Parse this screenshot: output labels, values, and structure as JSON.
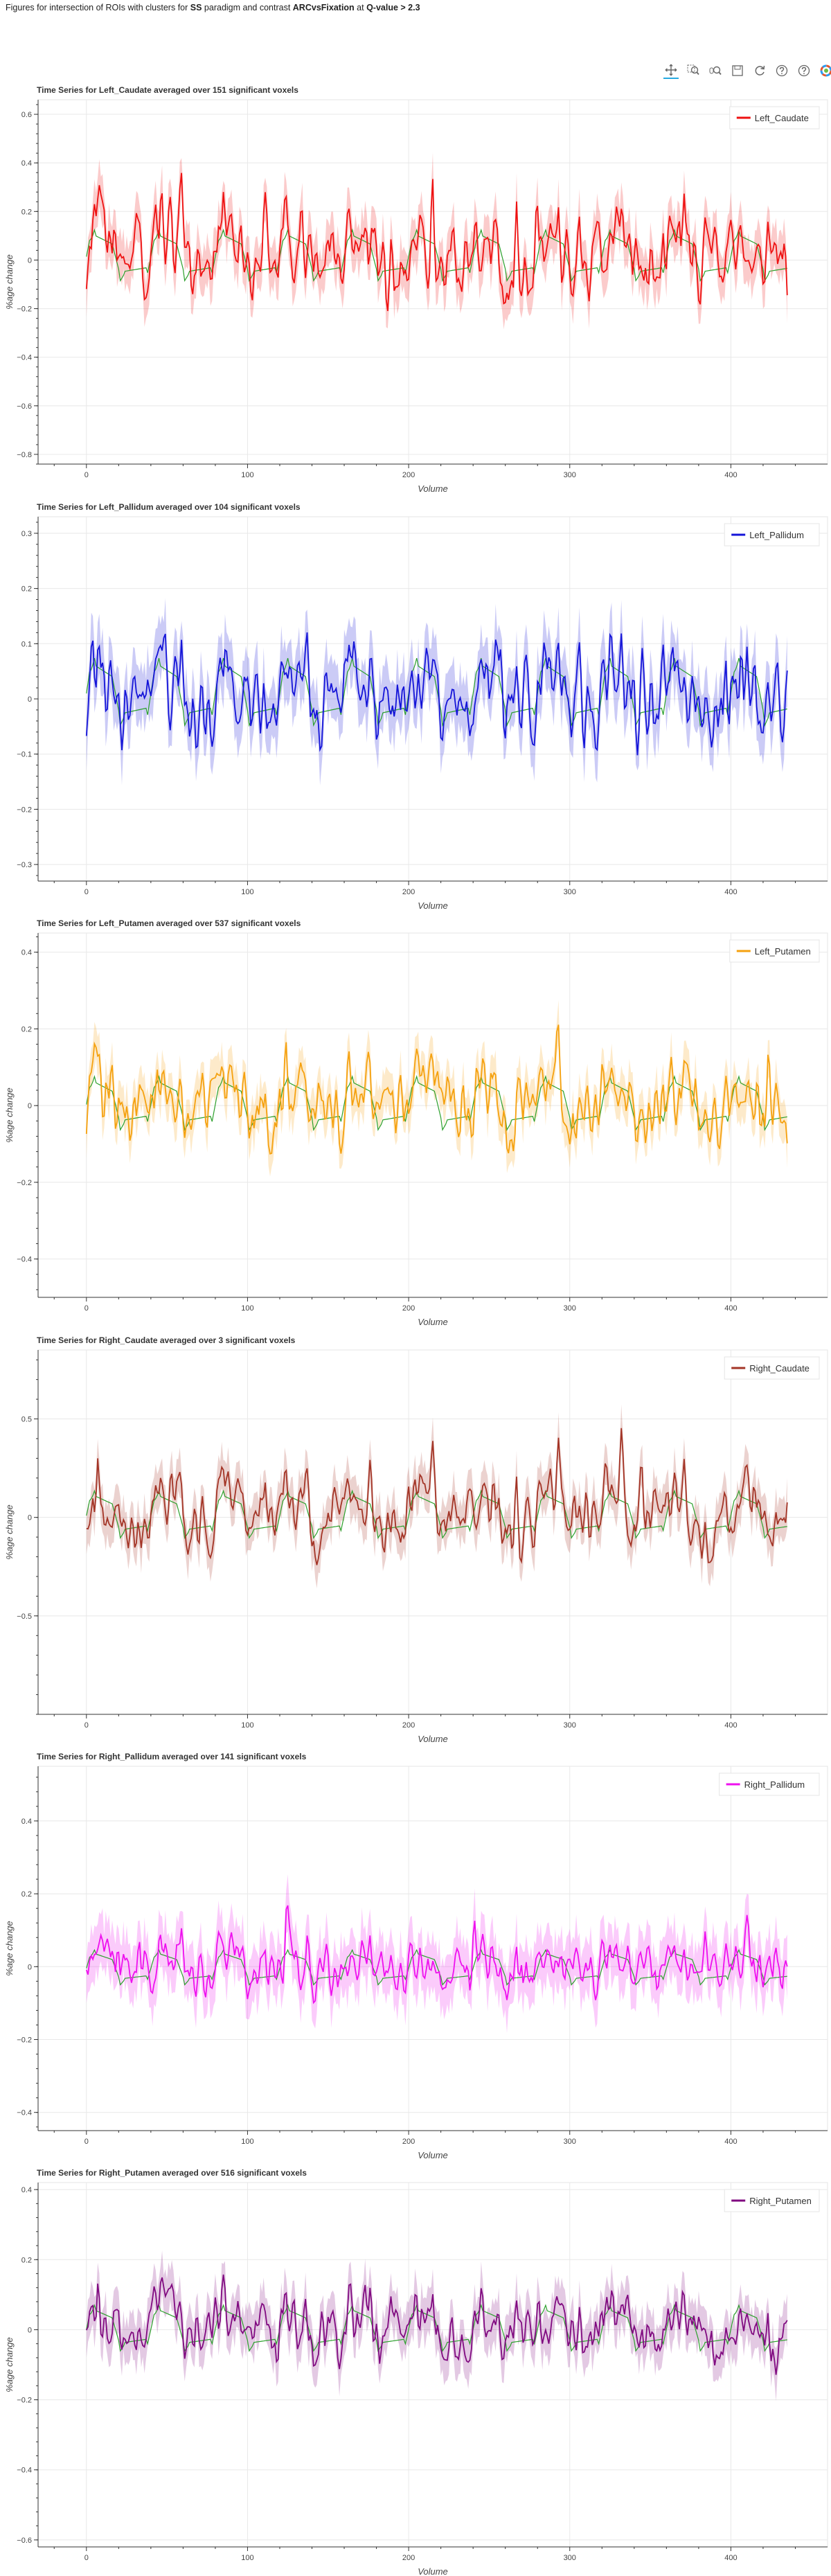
{
  "page": {
    "title_prefix": "Figures for intersection of ROIs with clusters for ",
    "paradigm": "SS",
    "title_mid1": " paradigm and contrast ",
    "contrast": "ARCvsFixation",
    "title_mid2": " at ",
    "threshold": "Q-value > 2.3"
  },
  "toolbar": {
    "tools": [
      "pan-icon",
      "box-zoom-icon",
      "wheel-zoom-icon",
      "save-icon",
      "reset-icon",
      "help-icon",
      "hover-help-icon",
      "bokeh-logo-icon"
    ]
  },
  "colors": {
    "model": "#2ca02c",
    "grid": "#e8e8e8",
    "axis": "#333333"
  },
  "chart_data": [
    {
      "type": "line",
      "title": "Time Series for Left_Caudate averaged over 151 significant voxels",
      "xlabel": "Volume",
      "ylabel": "%age change",
      "xlim": [
        -30,
        460
      ],
      "ylim": [
        -0.84,
        0.66
      ],
      "xticks": [
        0,
        100,
        200,
        300,
        400
      ],
      "yticks": [
        -0.8,
        -0.6,
        -0.4,
        -0.2,
        0,
        0.2,
        0.4,
        0.6
      ],
      "ytick_labels": [
        "−0.8",
        "−0.6",
        "−0.4",
        "−0.2",
        "0",
        "0.2",
        "0.4",
        "0.6"
      ],
      "legend": "top-right",
      "grid": true,
      "series": [
        {
          "name": "Left_Caudate",
          "color": "#ee1111",
          "amp": 0.55,
          "seed": 11,
          "ci": 0.09
        }
      ],
      "model": {
        "amp": 0.48,
        "offset": -0.02
      }
    },
    {
      "type": "line",
      "title": "Time Series for Left_Pallidum averaged over 104 significant voxels",
      "xlabel": "Volume",
      "ylabel": "",
      "xlim": [
        -30,
        460
      ],
      "ylim": [
        -0.33,
        0.33
      ],
      "xticks": [
        0,
        100,
        200,
        300,
        400
      ],
      "yticks": [
        -0.3,
        -0.2,
        -0.1,
        0,
        0.1,
        0.2,
        0.3
      ],
      "ytick_labels": [
        "−0.3",
        "−0.2",
        "−0.1",
        "0",
        "0.1",
        "0.2",
        "0.3"
      ],
      "legend": "top-right",
      "grid": true,
      "series": [
        {
          "name": "Left_Pallidum",
          "color": "#1414d8",
          "amp": 0.24,
          "seed": 23,
          "ci": 0.05
        }
      ],
      "model": {
        "amp": 0.28,
        "offset": -0.01
      }
    },
    {
      "type": "line",
      "title": "Time Series for Left_Putamen averaged over 537 significant voxels",
      "xlabel": "Volume",
      "ylabel": "%age change",
      "xlim": [
        -30,
        460
      ],
      "ylim": [
        -0.5,
        0.45
      ],
      "xticks": [
        0,
        100,
        200,
        300,
        400
      ],
      "yticks": [
        -0.4,
        -0.2,
        0,
        0.2,
        0.4
      ],
      "ytick_labels": [
        "−0.4",
        "−0.2",
        "0",
        "0.2",
        "0.4"
      ],
      "legend": "top-right",
      "grid": true,
      "series": [
        {
          "name": "Left_Putamen",
          "color": "#f5a10f",
          "amp": 0.3,
          "seed": 37,
          "ci": 0.05
        }
      ],
      "model": {
        "amp": 0.32,
        "offset": -0.02
      }
    },
    {
      "type": "line",
      "title": "Time Series for Right_Caudate averaged over 3 significant voxels",
      "xlabel": "Volume",
      "ylabel": "%age change",
      "xlim": [
        -30,
        460
      ],
      "ylim": [
        -1.0,
        0.85
      ],
      "xticks": [
        0,
        100,
        200,
        300,
        400
      ],
      "yticks": [
        -0.5,
        0,
        0.5
      ],
      "ytick_labels": [
        "−0.5",
        "0",
        "0.5"
      ],
      "legend": "top-right",
      "grid": true,
      "series": [
        {
          "name": "Right_Caudate",
          "color": "#a33426",
          "amp": 0.55,
          "seed": 41,
          "ci": 0.1
        }
      ],
      "model": {
        "amp": 0.55,
        "offset": -0.03
      }
    },
    {
      "type": "line",
      "title": "Time Series for Right_Pallidum averaged over 141 significant voxels",
      "xlabel": "Volume",
      "ylabel": "%age change",
      "xlim": [
        -30,
        460
      ],
      "ylim": [
        -0.45,
        0.55
      ],
      "xticks": [
        0,
        100,
        200,
        300,
        400
      ],
      "yticks": [
        -0.4,
        -0.2,
        0,
        0.2,
        0.4
      ],
      "ytick_labels": [
        "−0.4",
        "−0.2",
        "0",
        "0.2",
        "0.4"
      ],
      "legend": "top-right",
      "grid": true,
      "series": [
        {
          "name": "Right_Pallidum",
          "color": "#ee10ee",
          "amp": 0.24,
          "seed": 57,
          "ci": 0.07
        }
      ],
      "model": {
        "amp": 0.22,
        "offset": -0.02
      }
    },
    {
      "type": "line",
      "title": "Time Series for Right_Putamen averaged over 516 significant voxels",
      "xlabel": "Volume",
      "ylabel": "%age change",
      "xlim": [
        -30,
        460
      ],
      "ylim": [
        -0.62,
        0.42
      ],
      "xticks": [
        0,
        100,
        200,
        300,
        400
      ],
      "yticks": [
        -0.6,
        -0.4,
        -0.2,
        0,
        0.2,
        0.4
      ],
      "ytick_labels": [
        "−0.6",
        "−0.4",
        "−0.2",
        "0",
        "0.2",
        "0.4"
      ],
      "legend": "top-right",
      "grid": true,
      "series": [
        {
          "name": "Right_Putamen",
          "color": "#800a80",
          "amp": 0.28,
          "seed": 71,
          "ci": 0.06
        }
      ],
      "model": {
        "amp": 0.3,
        "offset": -0.02
      }
    }
  ]
}
